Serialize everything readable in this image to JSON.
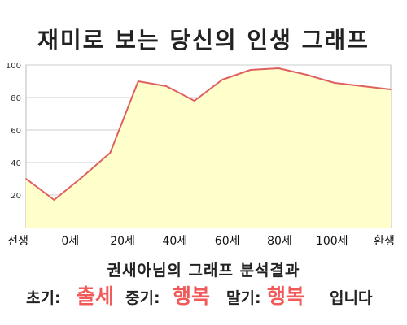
{
  "chart_data": {
    "type": "area",
    "title": "재미로 보는 당신의 인생 그래프",
    "x_tick_labels": [
      "전생",
      "0세",
      "20세",
      "40세",
      "60세",
      "80세",
      "100세",
      "환생"
    ],
    "y_ticks": [
      20,
      40,
      60,
      80,
      100
    ],
    "ylim": [
      0,
      100
    ],
    "series": [
      {
        "values": [
          30,
          17,
          31,
          46,
          90,
          87,
          78,
          91,
          97,
          98,
          94,
          89,
          87,
          85
        ]
      }
    ],
    "grid": false,
    "colors": {
      "line": "#e06060",
      "fill": "#ffffcc",
      "grid": "#cccccc"
    }
  },
  "summary": {
    "title": "권새아님의 그래프 분석결과",
    "early_label": "초기:",
    "early_value": "출세",
    "mid_label": "중기:",
    "mid_value": "행복",
    "late_label": "말기:",
    "late_value": "행복",
    "suffix": "입니다"
  }
}
